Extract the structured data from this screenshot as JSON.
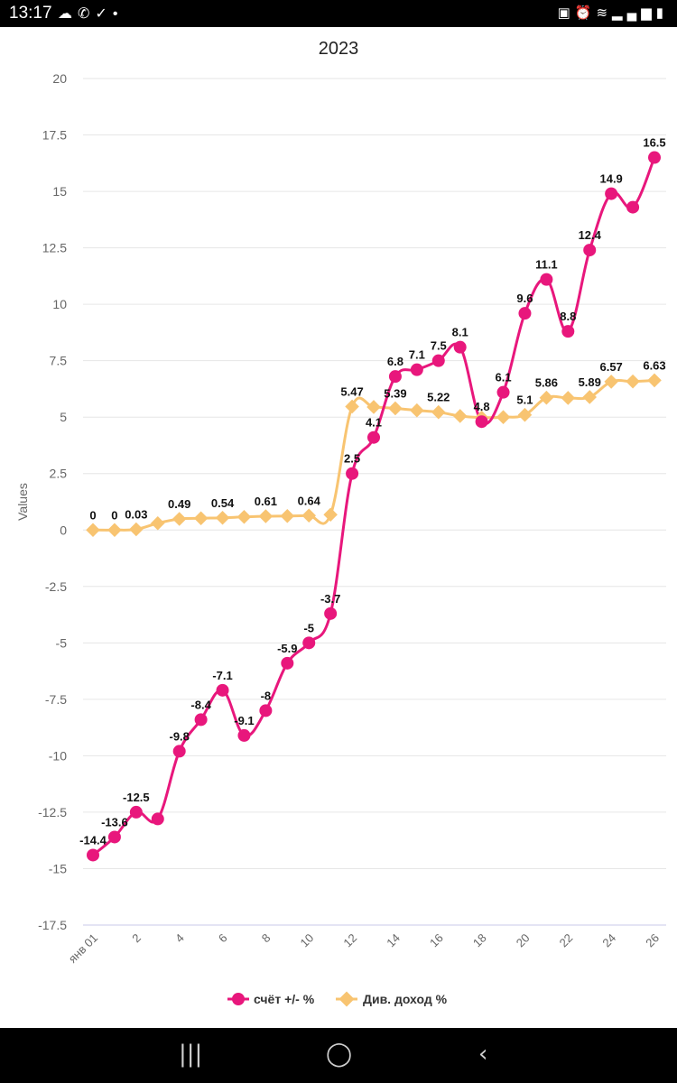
{
  "status_bar": {
    "time": "13:17",
    "left_icons": [
      "weather-icon",
      "missed-call-icon",
      "check-circle-icon",
      "dot-icon"
    ],
    "right_icons": [
      "sim-icon",
      "alarm-icon",
      "wifi-icon",
      "signal-icon",
      "battery-icon"
    ]
  },
  "nav_bar": {
    "recents_icon": "recents-icon",
    "home_icon": "home-icon",
    "back_icon": "back-icon"
  },
  "colors": {
    "series1": "#e8177c",
    "series2": "#f8c471",
    "grid": "#e6e6e6",
    "axis_text": "#666666"
  },
  "chart_data": {
    "type": "line",
    "title": "2023",
    "ylabel": "Values",
    "xlabel": "",
    "ylim": [
      -17.5,
      20
    ],
    "yticks": [
      "20",
      "17.5",
      "15",
      "12.5",
      "10",
      "7.5",
      "5",
      "2.5",
      "0",
      "-2.5",
      "-5",
      "-7.5",
      "-10",
      "-12.5",
      "-15",
      "-17.5"
    ],
    "ytick_values": [
      20,
      17.5,
      15,
      12.5,
      10,
      7.5,
      5,
      2.5,
      0,
      -2.5,
      -5,
      -7.5,
      -10,
      -12.5,
      -15,
      -17.5
    ],
    "x": [
      0,
      1,
      2,
      3,
      4,
      5,
      6,
      7,
      8,
      9,
      10,
      11,
      12,
      13,
      14,
      15,
      16,
      17,
      18,
      19,
      20,
      21,
      22,
      23,
      24,
      25,
      26
    ],
    "xticks": [
      {
        "x": 0,
        "label": "янв 01"
      },
      {
        "x": 2,
        "label": "2"
      },
      {
        "x": 4,
        "label": "4"
      },
      {
        "x": 6,
        "label": "6"
      },
      {
        "x": 8,
        "label": "8"
      },
      {
        "x": 10,
        "label": "10"
      },
      {
        "x": 12,
        "label": "12"
      },
      {
        "x": 14,
        "label": "14"
      },
      {
        "x": 16,
        "label": "16"
      },
      {
        "x": 18,
        "label": "18"
      },
      {
        "x": 20,
        "label": "20"
      },
      {
        "x": 22,
        "label": "22"
      },
      {
        "x": 24,
        "label": "24"
      },
      {
        "x": 26,
        "label": "26"
      }
    ],
    "series": [
      {
        "name": "счёт +/- %",
        "marker": "circle",
        "values": [
          -14.4,
          -13.6,
          -12.5,
          -12.8,
          -9.8,
          -8.4,
          -7.1,
          -9.1,
          -8,
          -5.9,
          -5,
          -3.7,
          2.5,
          4.1,
          6.8,
          7.1,
          7.5,
          8.1,
          4.8,
          6.1,
          9.6,
          11.1,
          8.8,
          12.4,
          14.9,
          14.3,
          16.5
        ],
        "labels": [
          "-14.4",
          "-13.6",
          "-12.5",
          "",
          "-9.8",
          "-8.4",
          "-7.1",
          "-9.1",
          "-8",
          "-5.9",
          "-5",
          "-3.7",
          "2.5",
          "4.1",
          "6.8",
          "7.1",
          "7.5",
          "8.1",
          "4.8",
          "6.1",
          "9.6",
          "11.1",
          "8.8",
          "12.4",
          "14.9",
          "",
          "16.5"
        ]
      },
      {
        "name": "Див. доход %",
        "marker": "diamond",
        "values": [
          0,
          0,
          0.03,
          0.3,
          0.49,
          0.52,
          0.54,
          0.58,
          0.61,
          0.62,
          0.64,
          0.68,
          5.47,
          5.45,
          5.39,
          5.3,
          5.22,
          5.05,
          4.98,
          5.0,
          5.1,
          5.86,
          5.85,
          5.89,
          6.57,
          6.58,
          6.63
        ],
        "labels": [
          "0",
          "0",
          "0.03",
          "",
          "0.49",
          "",
          "0.54",
          "",
          "0.61",
          "",
          "0.64",
          "",
          "5.47",
          "",
          "5.39",
          "",
          "5.22",
          "",
          "",
          "",
          "5.1",
          "5.86",
          "",
          "5.89",
          "6.57",
          "",
          "6.63"
        ]
      }
    ],
    "legend_position": "bottom-center"
  }
}
